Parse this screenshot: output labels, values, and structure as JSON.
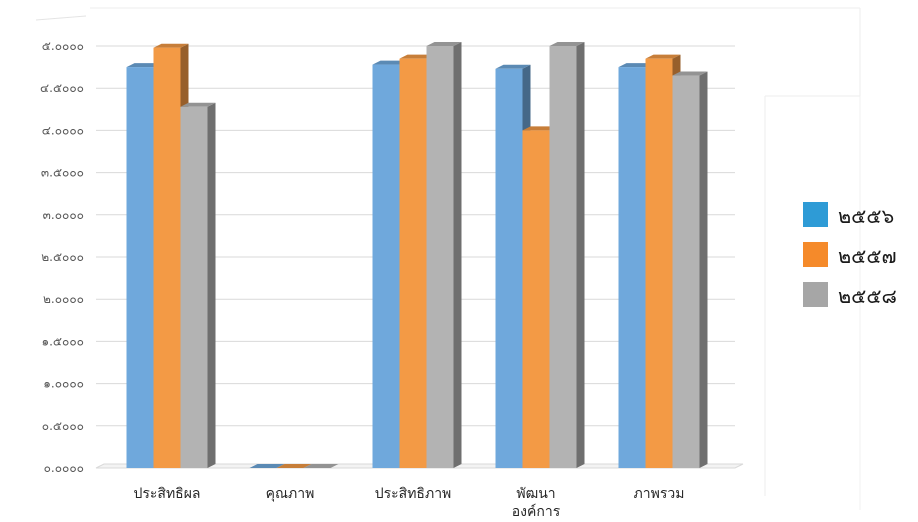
{
  "chart_data": {
    "type": "bar",
    "categories": [
      "ประสิทธิผล",
      "คุณภาพ",
      "ประสิทธิภาพ",
      "พัฒนาองค์การ",
      "ภาพรวม"
    ],
    "category_lines": [
      [
        "ประสิทธิผล"
      ],
      [
        "คุณภาพ"
      ],
      [
        "ประสิทธิภาพ"
      ],
      [
        "พัฒนา",
        "องค์การ"
      ],
      [
        "ภาพรวม"
      ]
    ],
    "series": [
      {
        "name": "๒๕๕๖",
        "color": "#6fa8dc",
        "legend_color": "#2e9bd6",
        "values": [
          4.75,
          0.0,
          4.78,
          4.73,
          4.75
        ]
      },
      {
        "name": "๒๕๕๗",
        "color": "#f39a45",
        "legend_color": "#f58a2a",
        "values": [
          4.98,
          0.0,
          4.85,
          4.0,
          4.85
        ]
      },
      {
        "name": "๒๕๕๘",
        "color": "#b3b3b3",
        "legend_color": "#a6a6a6",
        "values": [
          4.28,
          0.0,
          5.0,
          5.0,
          4.65
        ]
      }
    ],
    "yticks": [
      "๐.๐๐๐๐",
      "๐.๕๐๐๐",
      "๑.๐๐๐๐",
      "๑.๕๐๐๐",
      "๒.๐๐๐๐",
      "๒.๕๐๐๐",
      "๓.๐๐๐๐",
      "๓.๕๐๐๐",
      "๔.๐๐๐๐",
      "๔.๕๐๐๐",
      "๕.๐๐๐๐"
    ],
    "ylim": [
      0,
      5
    ],
    "grid": true,
    "legend_position": "right",
    "style": "3d-clustered-column"
  }
}
